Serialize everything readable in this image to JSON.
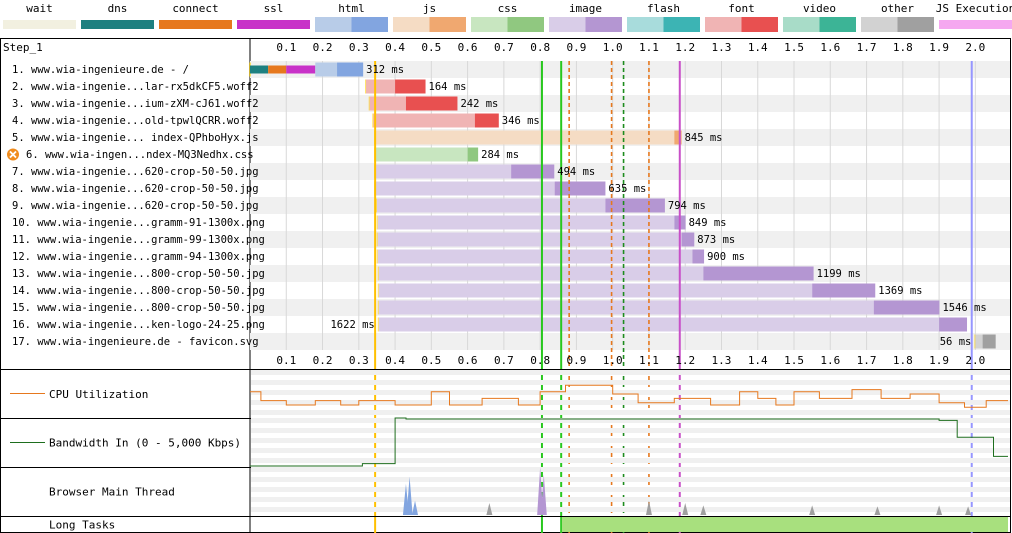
{
  "legend": [
    {
      "name": "wait",
      "light": "#f2f0e0",
      "dark": "#f2f0e0"
    },
    {
      "name": "dns",
      "light": "#1e8080",
      "dark": "#1e8080"
    },
    {
      "name": "connect",
      "light": "#e6781e",
      "dark": "#e6781e"
    },
    {
      "name": "ssl",
      "light": "#c832c8",
      "dark": "#c832c8"
    },
    {
      "name": "html",
      "light": "#b8cce8",
      "dark": "#82a5e0"
    },
    {
      "name": "js",
      "light": "#f5dcc4",
      "dark": "#f0a870"
    },
    {
      "name": "css",
      "light": "#c8e6c0",
      "dark": "#90c880"
    },
    {
      "name": "image",
      "light": "#d9cde8",
      "dark": "#b496d2"
    },
    {
      "name": "flash",
      "light": "#a8dcdc",
      "dark": "#3cb4b4"
    },
    {
      "name": "font",
      "light": "#f0b4b4",
      "dark": "#e85050"
    },
    {
      "name": "video",
      "light": "#a8dcc8",
      "dark": "#3cb496"
    },
    {
      "name": "other",
      "light": "#d2d2d2",
      "dark": "#a0a0a0"
    },
    {
      "name": "JS Execution",
      "light": "#f5a8f0",
      "dark": "#f5a8f0"
    }
  ],
  "step_label": "Step_1",
  "chart_data": {
    "type": "waterfall",
    "x_ticks": [
      "0.1",
      "0.2",
      "0.3",
      "0.4",
      "0.5",
      "0.6",
      "0.7",
      "0.8",
      "0.9",
      "1.0",
      "1.1",
      "1.2",
      "1.3",
      "1.4",
      "1.5",
      "1.6",
      "1.7",
      "1.8",
      "1.9",
      "2.0"
    ],
    "xlim": [
      0,
      2.09
    ],
    "markers": [
      {
        "time": 0.345,
        "color": "#ffc000",
        "style": "solid"
      },
      {
        "time": 0.805,
        "color": "#28c81e",
        "style": "solid"
      },
      {
        "time": 0.858,
        "color": "#28c81e",
        "style": "solid"
      },
      {
        "time": 0.88,
        "color": "#e6781e",
        "style": "dashed"
      },
      {
        "time": 0.997,
        "color": "#e6781e",
        "style": "dashed"
      },
      {
        "time": 1.03,
        "color": "#1e8c1e",
        "style": "dashed"
      },
      {
        "time": 1.1,
        "color": "#e6781e",
        "style": "dashed"
      },
      {
        "time": 1.185,
        "color": "#c850c8",
        "style": "solid"
      },
      {
        "time": 1.99,
        "color": "#9696ff",
        "style": "solid"
      }
    ],
    "requests": [
      {
        "label": "1. www.wia-ingenieure.de - /",
        "type": "html",
        "start": 0.0,
        "dns": [
          0.0,
          0.05
        ],
        "connect": [
          0.05,
          0.1
        ],
        "ssl": [
          0.1,
          0.18
        ],
        "ttfb": [
          0.18,
          0.24
        ],
        "end": 0.312,
        "duration": "312 ms",
        "label_side": "right"
      },
      {
        "label": "2. www.wia-ingenie...lar-rx5dkCF5.woff2",
        "type": "font",
        "start": 0.32,
        "ttfb": [
          0.32,
          0.4
        ],
        "end": 0.484,
        "duration": "164 ms",
        "label_side": "right"
      },
      {
        "label": "3. www.wia-ingenie...ium-zXM-cJ61.woff2",
        "type": "font",
        "start": 0.33,
        "ttfb": [
          0.33,
          0.43
        ],
        "end": 0.572,
        "duration": "242 ms",
        "label_side": "right"
      },
      {
        "label": "4. www.wia-ingenie...old-tpwlQCRR.woff2",
        "type": "font",
        "start": 0.34,
        "ttfb": [
          0.34,
          0.62
        ],
        "end": 0.686,
        "duration": "346 ms",
        "label_side": "right"
      },
      {
        "label": "5. www.wia-ingenie... index-QPhboHyx.js",
        "type": "js",
        "start": 0.345,
        "ttfb": [
          0.345,
          1.17
        ],
        "end": 1.19,
        "duration": "845 ms",
        "label_side": "right"
      },
      {
        "label": "6. www.wia-ingen...ndex-MQ3Nedhx.css",
        "type": "css",
        "start": 0.345,
        "ttfb": [
          0.345,
          0.6
        ],
        "end": 0.629,
        "duration": "284 ms",
        "label_side": "right",
        "blocking": true
      },
      {
        "label": "7. www.wia-ingenie...620-crop-50-50.jpg",
        "type": "image",
        "start": 0.345,
        "ttfb": [
          0.345,
          0.72
        ],
        "end": 0.839,
        "duration": "494 ms",
        "label_side": "right"
      },
      {
        "label": "8. www.wia-ingenie...620-crop-50-50.jpg",
        "type": "image",
        "start": 0.345,
        "ttfb": [
          0.345,
          0.84
        ],
        "end": 0.98,
        "duration": "635 ms",
        "label_side": "right"
      },
      {
        "label": "9. www.wia-ingenie...620-crop-50-50.jpg",
        "type": "image",
        "start": 0.35,
        "ttfb": [
          0.35,
          0.98
        ],
        "end": 1.144,
        "duration": "794 ms",
        "label_side": "right"
      },
      {
        "label": "10. www.wia-ingenie...gramm-91-1300x.png",
        "type": "image",
        "start": 0.352,
        "ttfb": [
          0.352,
          1.17
        ],
        "end": 1.201,
        "duration": "849 ms",
        "label_side": "right"
      },
      {
        "label": "11. www.wia-ingenie...gramm-99-1300x.png",
        "type": "image",
        "start": 0.352,
        "ttfb": [
          0.352,
          1.19
        ],
        "end": 1.225,
        "duration": "873 ms",
        "label_side": "right"
      },
      {
        "label": "12. www.wia-ingenie...gramm-94-1300x.png",
        "type": "image",
        "start": 0.352,
        "ttfb": [
          0.352,
          1.22
        ],
        "end": 1.252,
        "duration": "900 ms",
        "label_side": "right"
      },
      {
        "label": "13. www.wia-ingenie...800-crop-50-50.jpg",
        "type": "image",
        "start": 0.355,
        "ttfb": [
          0.355,
          1.25
        ],
        "end": 1.554,
        "duration": "1199 ms",
        "label_side": "right"
      },
      {
        "label": "14. www.wia-ingenie...800-crop-50-50.jpg",
        "type": "image",
        "start": 0.355,
        "ttfb": [
          0.355,
          1.55
        ],
        "end": 1.724,
        "duration": "1369 ms",
        "label_side": "right"
      },
      {
        "label": "15. www.wia-ingenie...800-crop-50-50.jpg",
        "type": "image",
        "start": 0.355,
        "ttfb": [
          0.355,
          1.72
        ],
        "end": 1.901,
        "duration": "1546 ms",
        "label_side": "right"
      },
      {
        "label": "16. www.wia-ingenie...ken-logo-24-25.png",
        "type": "image",
        "start": 0.355,
        "ttfb": [
          0.355,
          1.9
        ],
        "end": 1.977,
        "duration": "1622 ms",
        "label_side": "left"
      },
      {
        "label": "17. www.wia-ingenieure.de - favicon.svg",
        "type": "other",
        "start": 2.0,
        "ttfb": [
          2.0,
          2.02
        ],
        "end": 2.056,
        "duration": "56 ms",
        "label_side": "left"
      }
    ]
  },
  "bottom_panels": {
    "cpu_label": "CPU Utilization",
    "bandwidth_label": "Bandwidth In (0 - 5,000 Kbps)",
    "main_thread_label": "Browser Main Thread",
    "long_tasks_label": "Long Tasks",
    "cpu_color": "#e6781e",
    "bandwidth_color": "#1e6e1e",
    "long_tasks_color": "#a8e07e",
    "cpu_series": {
      "time": [
        0,
        0.03,
        0.03,
        0.1,
        0.1,
        0.18,
        0.18,
        0.25,
        0.25,
        0.3,
        0.3,
        0.4,
        0.4,
        0.5,
        0.5,
        0.55,
        0.55,
        0.64,
        0.64,
        0.74,
        0.74,
        0.8,
        0.8,
        0.87,
        0.87,
        1.0,
        1.0,
        1.07,
        1.07,
        1.17,
        1.17,
        1.27,
        1.27,
        1.35,
        1.35,
        1.4,
        1.4,
        1.45,
        1.45,
        1.5,
        1.5,
        1.57,
        1.57,
        1.66,
        1.66,
        1.74,
        1.74,
        1.82,
        1.82,
        1.9,
        1.9,
        1.97,
        1.97,
        2.03,
        2.03,
        2.09
      ],
      "percent": [
        55,
        55,
        35,
        35,
        25,
        25,
        35,
        35,
        25,
        25,
        35,
        35,
        25,
        25,
        55,
        55,
        25,
        25,
        40,
        40,
        25,
        25,
        55,
        55,
        70,
        70,
        50,
        50,
        30,
        30,
        40,
        40,
        25,
        25,
        55,
        55,
        40,
        40,
        25,
        25,
        55,
        55,
        40,
        40,
        60,
        60,
        40,
        40,
        50,
        50,
        30,
        30,
        20,
        20,
        35,
        35
      ]
    },
    "bandwidth_series": {
      "time": [
        0,
        0.31,
        0.31,
        0.4,
        0.4,
        0.43,
        0.43,
        1.9,
        1.9,
        1.95,
        1.95,
        2.05,
        2.05,
        2.09
      ],
      "percent": [
        0,
        0,
        5,
        5,
        100,
        100,
        98,
        98,
        95,
        95,
        60,
        60,
        20,
        20
      ]
    },
    "main_thread_spikes": [
      {
        "time": 0.43,
        "height": 0.65,
        "color": "#82a5e0"
      },
      {
        "time": 0.44,
        "height": 0.8,
        "color": "#82a5e0"
      },
      {
        "time": 0.455,
        "height": 0.3,
        "color": "#82a5e0"
      },
      {
        "time": 0.8,
        "height": 1.0,
        "color": "#b496d2"
      },
      {
        "time": 0.81,
        "height": 0.85,
        "color": "#b496d2"
      },
      {
        "time": 0.66,
        "height": 0.25,
        "color": "#a0a0a0"
      },
      {
        "time": 1.1,
        "height": 0.3,
        "color": "#a0a0a0"
      },
      {
        "time": 1.2,
        "height": 0.25,
        "color": "#a0a0a0"
      },
      {
        "time": 1.25,
        "height": 0.2,
        "color": "#a0a0a0"
      },
      {
        "time": 1.55,
        "height": 0.2,
        "color": "#a0a0a0"
      },
      {
        "time": 1.73,
        "height": 0.18,
        "color": "#a0a0a0"
      },
      {
        "time": 1.9,
        "height": 0.2,
        "color": "#a0a0a0"
      },
      {
        "time": 1.98,
        "height": 0.18,
        "color": "#a0a0a0"
      }
    ],
    "long_tasks": [
      {
        "start": 0.86,
        "end": 2.09
      }
    ]
  }
}
